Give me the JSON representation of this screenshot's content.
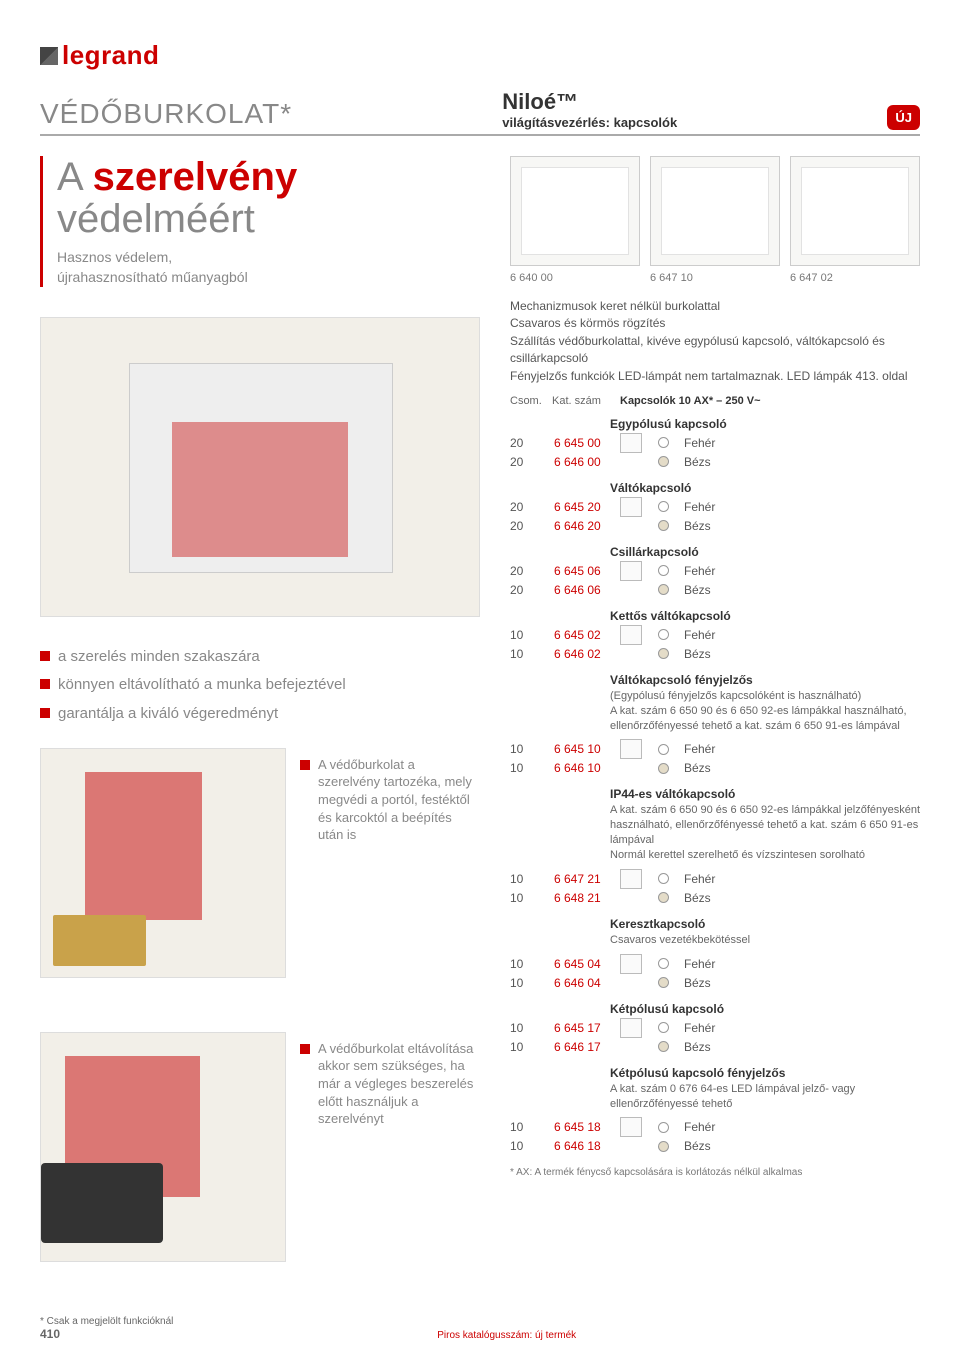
{
  "logo": {
    "text": "legrand"
  },
  "header": {
    "vedoburkolat": "VÉDŐBURKOLAT*",
    "niloe": "Niloé™",
    "niloe_sub": "világításvezérlés: kapcsolók",
    "uj": "ÚJ"
  },
  "hero": {
    "line1_prefix": "A ",
    "line1_accent": "szerelvény",
    "line2": "védelméért",
    "sub1": "Hasznos védelem,",
    "sub2": "újrahasznosítható műanyagból"
  },
  "bullets": {
    "b1": "a szerelés minden szakaszára",
    "b2": "könnyen eltávolítható a munka befejeztével",
    "b3": "garantálja a kiváló végeredményt"
  },
  "side1": "A védőburkolat a szerelvény tartozéka, mely megvédi a portól, festéktől és karcoktól a beépítés után is",
  "side2": "A védőburkolat eltávolítása akkor sem szükséges, ha már a végleges beszerelés előtt használjuk a szerelvényt",
  "mini_codes": [
    "6 640 00",
    "6 647 10",
    "6 647 02"
  ],
  "intro": "Mechanizmusok keret nélkül burkolattal\nCsavaros és körmös rögzítés\nSzállítás védőburkolattal, kivéve egypólusú kapcsoló, váltókapcsoló és csillárkapcsoló\nFényjelzős funkciók LED-lámpát nem tartalmaznak. LED lámpák 413. oldal",
  "table_head": {
    "c1": "Csom.",
    "c2": "Kat. szám",
    "title": "Kapcsolók 10 AX* – 250 V~"
  },
  "sections": [
    {
      "title": "Egypólusú kapcsoló",
      "note": "",
      "rows": [
        {
          "qty": "20",
          "code": "6 645 00",
          "icon": true,
          "swatch": "white",
          "label": "Fehér"
        },
        {
          "qty": "20",
          "code": "6 646 00",
          "icon": false,
          "swatch": "beige",
          "label": "Bézs"
        }
      ]
    },
    {
      "title": "Váltókapcsoló",
      "note": "",
      "rows": [
        {
          "qty": "20",
          "code": "6 645 20",
          "icon": true,
          "swatch": "white",
          "label": "Fehér"
        },
        {
          "qty": "20",
          "code": "6 646 20",
          "icon": false,
          "swatch": "beige",
          "label": "Bézs"
        }
      ]
    },
    {
      "title": "Csillárkapcsoló",
      "note": "",
      "rows": [
        {
          "qty": "20",
          "code": "6 645 06",
          "icon": true,
          "swatch": "white",
          "label": "Fehér"
        },
        {
          "qty": "20",
          "code": "6 646 06",
          "icon": false,
          "swatch": "beige",
          "label": "Bézs"
        }
      ]
    },
    {
      "title": "Kettős váltókapcsoló",
      "note": "",
      "rows": [
        {
          "qty": "10",
          "code": "6 645 02",
          "icon": true,
          "swatch": "white",
          "label": "Fehér"
        },
        {
          "qty": "10",
          "code": "6 646 02",
          "icon": false,
          "swatch": "beige",
          "label": "Bézs"
        }
      ]
    },
    {
      "title": "Váltókapcsoló fényjelzős",
      "note": "(Egypólusú fényjelzős kapcsolóként is használható)\nA kat. szám 6 650 90 és 6 650 92-es lámpákkal használható, ellenőrzőfényessé tehető a kat. szám 6 650 91-es lámpával",
      "rows": [
        {
          "qty": "10",
          "code": "6 645 10",
          "icon": true,
          "swatch": "white",
          "label": "Fehér"
        },
        {
          "qty": "10",
          "code": "6 646 10",
          "icon": false,
          "swatch": "beige",
          "label": "Bézs"
        }
      ]
    },
    {
      "title": "IP44-es váltókapcsoló",
      "note": "A kat. szám 6 650 90 és 6 650 92-es lámpákkal jelzőfényesként használható, ellenőrzőfényessé tehető a kat. szám 6 650 91-es lámpával\nNormál kerettel szerelhető és vízszintesen sorolható",
      "rows": [
        {
          "qty": "10",
          "code": "6 647 21",
          "icon": true,
          "swatch": "white",
          "label": "Fehér"
        },
        {
          "qty": "10",
          "code": "6 648 21",
          "icon": false,
          "swatch": "beige",
          "label": "Bézs"
        }
      ]
    },
    {
      "title": "Keresztkapcsoló",
      "note": "Csavaros vezetékbekötéssel",
      "rows": [
        {
          "qty": "10",
          "code": "6 645 04",
          "icon": true,
          "swatch": "white",
          "label": "Fehér"
        },
        {
          "qty": "10",
          "code": "6 646 04",
          "icon": false,
          "swatch": "beige",
          "label": "Bézs"
        }
      ]
    },
    {
      "title": "Kétpólusú kapcsoló",
      "note": "",
      "rows": [
        {
          "qty": "10",
          "code": "6 645 17",
          "icon": true,
          "swatch": "white",
          "label": "Fehér"
        },
        {
          "qty": "10",
          "code": "6 646 17",
          "icon": false,
          "swatch": "beige",
          "label": "Bézs"
        }
      ]
    },
    {
      "title": "Kétpólusú kapcsoló fényjelzős",
      "note": "A kat. szám 0 676 64-es LED lámpával jelző- vagy ellenőrzőfényessé tehető",
      "rows": [
        {
          "qty": "10",
          "code": "6 645 18",
          "icon": true,
          "swatch": "white",
          "label": "Fehér"
        },
        {
          "qty": "10",
          "code": "6 646 18",
          "icon": false,
          "swatch": "beige",
          "label": "Bézs"
        }
      ]
    }
  ],
  "ax_note": "* AX: A termék fénycső kapcsolására is korlátozás nélkül alkalmas",
  "bottom": {
    "left": "* Csak a megjelölt funkcióknál",
    "center": "Piros katalógusszám: új termék",
    "page": "410"
  },
  "colors": {
    "accent": "#c00",
    "text": "#555",
    "headtext": "#333"
  }
}
